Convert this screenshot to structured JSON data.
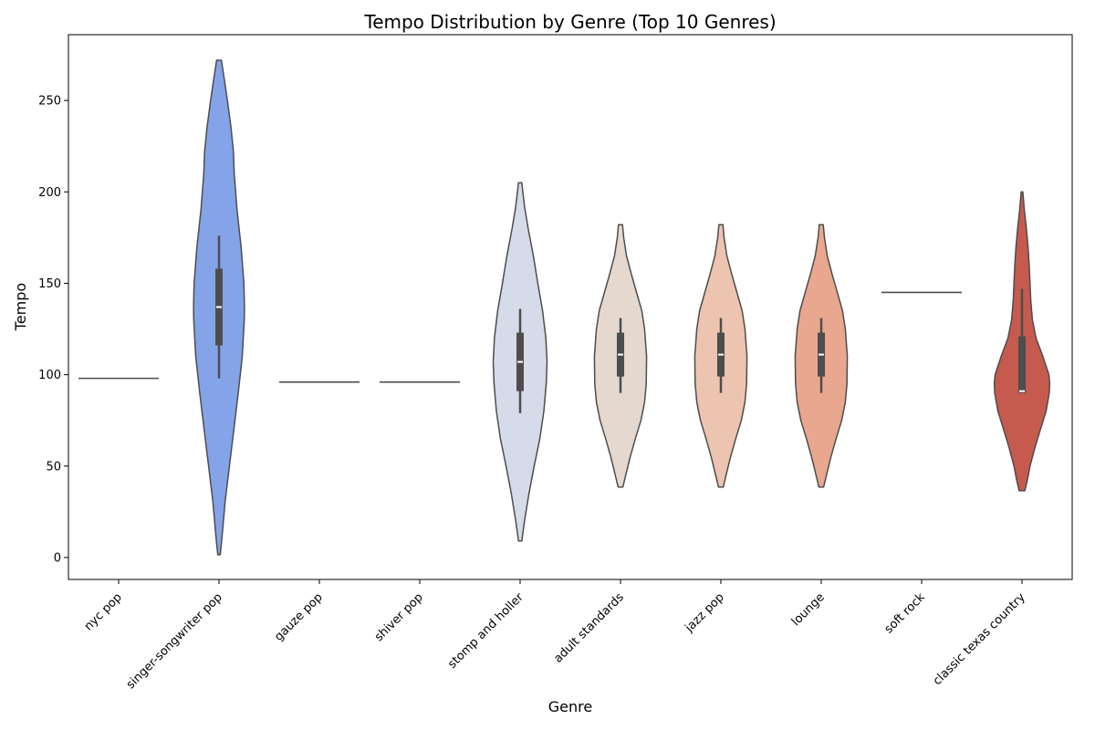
{
  "chart_data": {
    "type": "violin",
    "title": "Tempo Distribution by Genre (Top 10 Genres)",
    "xlabel": "Genre",
    "ylabel": "Tempo",
    "ylim": [
      -12,
      286
    ],
    "yticks": [
      0,
      50,
      100,
      150,
      200,
      250
    ],
    "grid": false,
    "categories": [
      "nyc pop",
      "singer-songwriter pop",
      "gauze pop",
      "shiver pop",
      "stomp and holler",
      "adult standards",
      "jazz pop",
      "lounge",
      "soft rock",
      "classic texas country"
    ],
    "violins": [
      {
        "color": "#3b4cc0",
        "min": 98,
        "max": 98,
        "profile": []
      },
      {
        "color": "#85a3e8",
        "min": 1.5,
        "max": 272,
        "q1": 116,
        "median": 137,
        "q3": 158,
        "whisker_low": 98,
        "whisker_high": 176,
        "profile": [
          [
            1.5,
            0.03
          ],
          [
            10,
            0.07
          ],
          [
            30,
            0.15
          ],
          [
            50,
            0.26
          ],
          [
            70,
            0.37
          ],
          [
            90,
            0.48
          ],
          [
            110,
            0.58
          ],
          [
            130,
            0.63
          ],
          [
            137,
            0.635
          ],
          [
            150,
            0.62
          ],
          [
            170,
            0.55
          ],
          [
            190,
            0.45
          ],
          [
            210,
            0.38
          ],
          [
            222,
            0.36
          ],
          [
            235,
            0.3
          ],
          [
            250,
            0.21
          ],
          [
            262,
            0.13
          ],
          [
            272,
            0.06
          ]
        ]
      },
      {
        "color": "#b5c9f2",
        "min": 96,
        "max": 96,
        "profile": []
      },
      {
        "color": "#c9d6f0",
        "min": 96,
        "max": 96,
        "profile": []
      },
      {
        "color": "#d5dbe8",
        "min": 9,
        "max": 205,
        "q1": 91,
        "median": 107,
        "q3": 123,
        "whisker_low": 79,
        "whisker_high": 136,
        "profile": [
          [
            9,
            0.04
          ],
          [
            20,
            0.11
          ],
          [
            35,
            0.22
          ],
          [
            50,
            0.35
          ],
          [
            65,
            0.49
          ],
          [
            80,
            0.59
          ],
          [
            95,
            0.65
          ],
          [
            107,
            0.67
          ],
          [
            120,
            0.64
          ],
          [
            135,
            0.56
          ],
          [
            150,
            0.44
          ],
          [
            165,
            0.33
          ],
          [
            180,
            0.2
          ],
          [
            192,
            0.11
          ],
          [
            205,
            0.04
          ]
        ]
      },
      {
        "color": "#e4d8cf",
        "min": 38.5,
        "max": 182,
        "q1": 99,
        "median": 111,
        "q3": 123,
        "whisker_low": 90,
        "whisker_high": 131,
        "profile": [
          [
            38.5,
            0.06
          ],
          [
            45,
            0.13
          ],
          [
            55,
            0.24
          ],
          [
            65,
            0.37
          ],
          [
            75,
            0.51
          ],
          [
            85,
            0.6
          ],
          [
            95,
            0.64
          ],
          [
            110,
            0.65
          ],
          [
            125,
            0.6
          ],
          [
            135,
            0.53
          ],
          [
            145,
            0.4
          ],
          [
            155,
            0.27
          ],
          [
            165,
            0.15
          ],
          [
            175,
            0.08
          ],
          [
            182,
            0.05
          ]
        ]
      },
      {
        "color": "#ecc4b0",
        "min": 38.5,
        "max": 182,
        "q1": 99,
        "median": 111,
        "q3": 123,
        "whisker_low": 90,
        "whisker_high": 131,
        "profile": [
          [
            38.5,
            0.06
          ],
          [
            45,
            0.13
          ],
          [
            55,
            0.24
          ],
          [
            65,
            0.37
          ],
          [
            75,
            0.51
          ],
          [
            85,
            0.6
          ],
          [
            95,
            0.64
          ],
          [
            110,
            0.65
          ],
          [
            125,
            0.6
          ],
          [
            135,
            0.53
          ],
          [
            145,
            0.4
          ],
          [
            155,
            0.27
          ],
          [
            165,
            0.15
          ],
          [
            175,
            0.08
          ],
          [
            182,
            0.05
          ]
        ]
      },
      {
        "color": "#e8a78e",
        "min": 38.5,
        "max": 182,
        "q1": 99,
        "median": 111,
        "q3": 123,
        "whisker_low": 90,
        "whisker_high": 131,
        "profile": [
          [
            38.5,
            0.06
          ],
          [
            45,
            0.13
          ],
          [
            55,
            0.24
          ],
          [
            65,
            0.37
          ],
          [
            75,
            0.51
          ],
          [
            85,
            0.6
          ],
          [
            95,
            0.64
          ],
          [
            110,
            0.65
          ],
          [
            125,
            0.6
          ],
          [
            135,
            0.53
          ],
          [
            145,
            0.4
          ],
          [
            155,
            0.27
          ],
          [
            165,
            0.15
          ],
          [
            175,
            0.08
          ],
          [
            182,
            0.05
          ]
        ]
      },
      {
        "color": "#dd7a63",
        "min": 145,
        "max": 145,
        "profile": []
      },
      {
        "color": "#c65a4f",
        "min": 36.5,
        "max": 200,
        "q1": 90,
        "median": 91,
        "q3": 121,
        "whisker_low": 90,
        "whisker_high": 147,
        "profile": [
          [
            36.5,
            0.07
          ],
          [
            42,
            0.13
          ],
          [
            50,
            0.2
          ],
          [
            60,
            0.32
          ],
          [
            70,
            0.46
          ],
          [
            80,
            0.6
          ],
          [
            90,
            0.68
          ],
          [
            95,
            0.69
          ],
          [
            100,
            0.67
          ],
          [
            110,
            0.52
          ],
          [
            120,
            0.35
          ],
          [
            130,
            0.26
          ],
          [
            140,
            0.22
          ],
          [
            150,
            0.2
          ],
          [
            160,
            0.18
          ],
          [
            170,
            0.15
          ],
          [
            180,
            0.11
          ],
          [
            190,
            0.06
          ],
          [
            200,
            0.02
          ]
        ]
      }
    ]
  }
}
